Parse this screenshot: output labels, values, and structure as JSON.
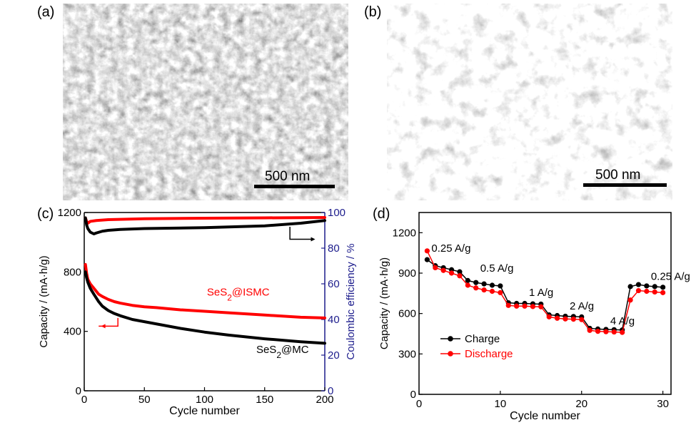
{
  "panels": {
    "a": {
      "label": "(a)",
      "scale_bar": "500 nm"
    },
    "b": {
      "label": "(b)",
      "scale_bar": "500 nm"
    },
    "c": {
      "label": "(c)"
    },
    "d": {
      "label": "(d)"
    }
  },
  "chart_data": [
    {
      "type": "line",
      "panel": "c",
      "xlabel": "Cycle number",
      "ylabel": "Capacity / (mA·h/g)",
      "y2label": "Coulombic efficiency / %",
      "xlim": [
        0,
        200
      ],
      "ylim": [
        0,
        1200
      ],
      "y2lim": [
        0,
        100
      ],
      "xticks": [
        0,
        50,
        100,
        150,
        200
      ],
      "yticks": [
        0,
        400,
        800,
        1200
      ],
      "y2ticks": [
        0,
        20,
        40,
        60,
        80,
        100
      ],
      "annotations": [
        "SeS₂@ISMC",
        "SeS₂@MC"
      ],
      "colors": {
        "ismc": "#ff0000",
        "mc": "#000000",
        "axis2": "#1c1c8c"
      },
      "series": [
        {
          "name": "SeS₂@ISMC",
          "axis": "left",
          "x": [
            1,
            2,
            3,
            5,
            8,
            10,
            12,
            15,
            20,
            25,
            30,
            40,
            50,
            60,
            80,
            100,
            120,
            150,
            180,
            200
          ],
          "y": [
            850,
            790,
            750,
            720,
            690,
            670,
            650,
            635,
            615,
            600,
            590,
            575,
            565,
            560,
            545,
            535,
            525,
            510,
            495,
            490
          ]
        },
        {
          "name": "SeS₂@MC",
          "axis": "left",
          "x": [
            1,
            2,
            3,
            5,
            8,
            10,
            12,
            15,
            20,
            25,
            30,
            40,
            50,
            60,
            80,
            100,
            120,
            150,
            180,
            200
          ],
          "y": [
            800,
            760,
            730,
            690,
            650,
            625,
            600,
            570,
            540,
            520,
            505,
            480,
            465,
            450,
            420,
            395,
            375,
            350,
            330,
            320
          ]
        },
        {
          "name": "SeS₂@ISMC CE",
          "axis": "right",
          "x": [
            1,
            2,
            3,
            5,
            10,
            20,
            50,
            100,
            150,
            200
          ],
          "y": [
            97,
            95,
            94,
            95,
            95.5,
            96,
            96.5,
            96.8,
            97,
            97.2
          ]
        },
        {
          "name": "SeS₂@MC CE",
          "axis": "right",
          "x": [
            1,
            2,
            3,
            5,
            8,
            10,
            15,
            20,
            30,
            50,
            100,
            150,
            180,
            200
          ],
          "y": [
            97,
            93,
            91,
            89,
            88,
            88.5,
            89.5,
            90,
            90.5,
            91,
            91.5,
            92.5,
            94,
            95.5
          ]
        }
      ]
    },
    {
      "type": "line",
      "panel": "d",
      "xlabel": "Cycle number",
      "ylabel": "Capacity / (mA·h/g)",
      "xlim": [
        0,
        31
      ],
      "ylim": [
        0,
        1350
      ],
      "xticks": [
        0,
        10,
        20,
        30
      ],
      "yticks": [
        0,
        300,
        600,
        900,
        1200
      ],
      "legend_position": "lower-left",
      "rate_labels": [
        {
          "text": "0.25 A/g",
          "x": 1,
          "y": 1060
        },
        {
          "text": "0.5 A/g",
          "x": 7,
          "y": 910
        },
        {
          "text": "1 A/g",
          "x": 13,
          "y": 730
        },
        {
          "text": "2 A/g",
          "x": 18,
          "y": 630
        },
        {
          "text": "4 A/g",
          "x": 23,
          "y": 520
        },
        {
          "text": "0.25 A/g",
          "x": 28,
          "y": 850
        }
      ],
      "series": [
        {
          "name": "Charge",
          "color": "#000000",
          "x": [
            1,
            2,
            3,
            4,
            5,
            6,
            7,
            8,
            9,
            10,
            11,
            12,
            13,
            14,
            15,
            16,
            17,
            18,
            19,
            20,
            21,
            22,
            23,
            24,
            25,
            26,
            27,
            28,
            29,
            30
          ],
          "y": [
            1000,
            955,
            940,
            925,
            910,
            845,
            830,
            820,
            810,
            805,
            680,
            675,
            675,
            672,
            670,
            590,
            585,
            580,
            578,
            575,
            490,
            485,
            482,
            480,
            478,
            800,
            815,
            805,
            800,
            795
          ]
        },
        {
          "name": "Discharge",
          "color": "#ff0000",
          "x": [
            1,
            2,
            3,
            4,
            5,
            6,
            7,
            8,
            9,
            10,
            11,
            12,
            13,
            14,
            15,
            16,
            17,
            18,
            19,
            20,
            21,
            22,
            23,
            24,
            25,
            26,
            27,
            28,
            29,
            30
          ],
          "y": [
            1065,
            940,
            920,
            900,
            880,
            810,
            790,
            775,
            765,
            755,
            660,
            655,
            655,
            652,
            650,
            575,
            565,
            560,
            558,
            555,
            475,
            468,
            465,
            463,
            460,
            700,
            770,
            765,
            760,
            755
          ]
        }
      ]
    }
  ]
}
